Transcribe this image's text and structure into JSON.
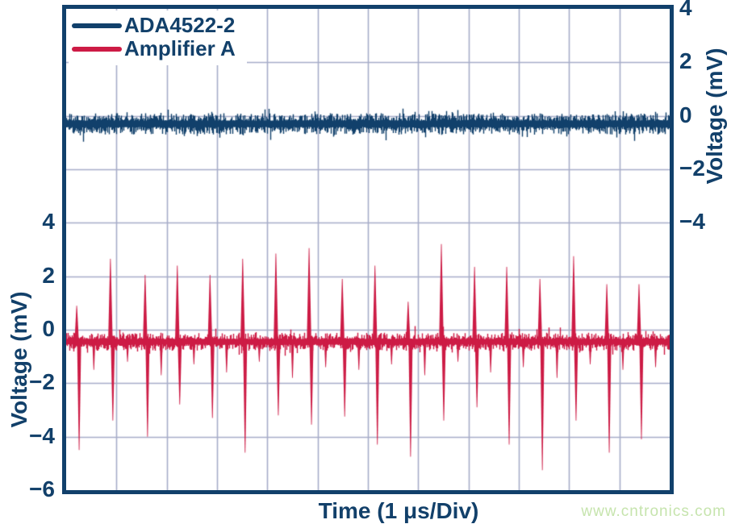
{
  "watermark": {
    "text": "www.cntronics.com",
    "color": "#c6e4ad"
  },
  "colors": {
    "navy": "#11406b",
    "red": "#cd1b45",
    "grid": "#a7adc9",
    "background": "#ffffff",
    "text": "#12406a"
  },
  "chart_data": {
    "type": "line",
    "title": "",
    "xlabel": "Time (1 μs/Div)",
    "x_divisions": 12,
    "x_div_unit": "1 μs/Div",
    "y_mV_per_division": 2,
    "grid_rows": 9,
    "grid_on": true,
    "legend_position": "top-left",
    "axes": {
      "right": {
        "label": "Voltage (mV)",
        "ticks": [
          "4",
          "2",
          "0",
          "−2",
          "−4"
        ],
        "tick_values": [
          4,
          2,
          0,
          -2,
          -4
        ],
        "tick_rows": [
          0,
          1,
          2,
          3,
          4
        ],
        "applies_to": "ADA4522-2"
      },
      "left": {
        "label": "Voltage (mV)",
        "ticks": [
          "4",
          "2",
          "0",
          "−2",
          "−4",
          "−6"
        ],
        "tick_values": [
          4,
          2,
          0,
          -2,
          -4,
          -6
        ],
        "tick_rows": [
          4,
          5,
          6,
          7,
          8,
          9
        ],
        "applies_to": "Amplifier A"
      }
    },
    "series": [
      {
        "name": "ADA4522-2",
        "color": "#11406b",
        "axis": "right",
        "baseline_mV": -0.3,
        "noise_core_mV": 0.4,
        "noise_tail_mV": 0.35,
        "seed": 1234567,
        "spikes": [],
        "minor_down_spikes": []
      },
      {
        "name": "Amplifier A",
        "color": "#cd1b45",
        "axis": "left",
        "baseline_mV": -0.45,
        "noise_core_mV": 0.34,
        "noise_tail_mV": 0.3,
        "seed": 7654321,
        "spikes": [
          {
            "t": 0.21,
            "up": 0.9,
            "down": -4.5
          },
          {
            "t": 0.88,
            "up": 2.65,
            "down": -3.4
          },
          {
            "t": 1.57,
            "up": 2.05,
            "down": -4.0
          },
          {
            "t": 2.21,
            "up": 2.4,
            "down": -2.8
          },
          {
            "t": 2.86,
            "up": 2.05,
            "down": -3.3
          },
          {
            "t": 3.51,
            "up": 2.65,
            "down": -4.6
          },
          {
            "t": 4.17,
            "up": 2.85,
            "down": -3.2
          },
          {
            "t": 4.83,
            "up": 3.05,
            "down": -3.55
          },
          {
            "t": 5.49,
            "up": 1.9,
            "down": -3.25
          },
          {
            "t": 6.14,
            "up": 2.4,
            "down": -4.3
          },
          {
            "t": 6.8,
            "up": 1.05,
            "down": -4.75
          },
          {
            "t": 7.46,
            "up": 3.2,
            "down": -3.4
          },
          {
            "t": 8.12,
            "up": 2.35,
            "down": -2.9
          },
          {
            "t": 8.76,
            "up": 2.35,
            "down": -4.3
          },
          {
            "t": 9.42,
            "up": 1.9,
            "down": -5.25
          },
          {
            "t": 10.09,
            "up": 2.75,
            "down": -3.4
          },
          {
            "t": 10.75,
            "up": 1.7,
            "down": -4.6
          },
          {
            "t": 11.39,
            "up": 1.7,
            "down": -4.1
          }
        ],
        "minor_down_spikes": [
          {
            "t": 0.55,
            "v": -1.5
          },
          {
            "t": 1.22,
            "v": -1.2
          },
          {
            "t": 1.89,
            "v": -1.7
          },
          {
            "t": 2.54,
            "v": -1.3
          },
          {
            "t": 3.19,
            "v": -1.6
          },
          {
            "t": 3.84,
            "v": -1.2
          },
          {
            "t": 4.5,
            "v": -1.8
          },
          {
            "t": 5.16,
            "v": -1.4
          },
          {
            "t": 5.82,
            "v": -1.5
          },
          {
            "t": 6.47,
            "v": -1.3
          },
          {
            "t": 7.13,
            "v": -1.7
          },
          {
            "t": 7.79,
            "v": -1.2
          },
          {
            "t": 8.44,
            "v": -1.6
          },
          {
            "t": 9.09,
            "v": -1.4
          },
          {
            "t": 9.76,
            "v": -1.8
          },
          {
            "t": 10.42,
            "v": -1.3
          },
          {
            "t": 11.07,
            "v": -1.5
          },
          {
            "t": 11.72,
            "v": -1.4
          }
        ]
      }
    ]
  }
}
